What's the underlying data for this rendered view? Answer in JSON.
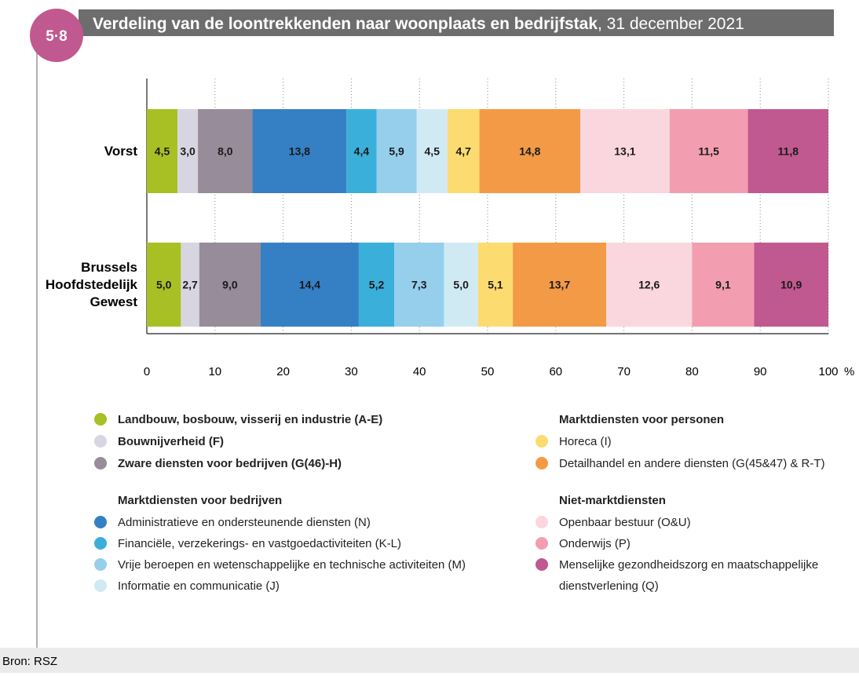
{
  "figure_number": "5·8",
  "source": "Bron: RSZ",
  "chart_data": {
    "type": "stacked_bar_horizontal",
    "title": "Verdeling van de loontrekkenden naar woonplaats en bedrijfstak",
    "subtitle": ", 31 december 2021",
    "categories": [
      "Vorst",
      "Brussels Hoofdstedelijk Gewest"
    ],
    "xlim": [
      0,
      100
    ],
    "xticks": [
      0,
      10,
      20,
      30,
      40,
      50,
      60,
      70,
      80,
      90,
      100
    ],
    "xlabel": "%",
    "grid": true,
    "legend_headings": [
      "Marktdiensten voor bedrijven",
      "Marktdiensten voor personen",
      "Niet-marktdiensten"
    ],
    "series": [
      {
        "name": "Landbouw, bosbouw, visserij en industrie (A-E)",
        "color": "#a8c023",
        "values": [
          4.5,
          5.0
        ],
        "value_labels": [
          "4,5",
          "5,0"
        ]
      },
      {
        "name": "Bouwnijverheid (F)",
        "color": "#d8d5e2",
        "values": [
          3.0,
          2.7
        ],
        "value_labels": [
          "3,0",
          "2,7"
        ]
      },
      {
        "name": "Zware diensten voor bedrijven (G(46)-H)",
        "color": "#978c99",
        "values": [
          8.0,
          9.0
        ],
        "value_labels": [
          "8,0",
          "9,0"
        ]
      },
      {
        "name": "Administratieve en ondersteunende diensten (N)",
        "color": "#3580c4",
        "values": [
          13.8,
          14.4
        ],
        "value_labels": [
          "13,8",
          "14,4"
        ]
      },
      {
        "name": "Financiële, verzekerings- en vastgoedactiviteiten (K-L)",
        "color": "#3aafd9",
        "values": [
          4.4,
          5.2
        ],
        "value_labels": [
          "4,4",
          "5,2"
        ]
      },
      {
        "name": "Vrije beroepen en wetenschappelijke en technische activiteiten (M)",
        "color": "#95cfec",
        "values": [
          5.9,
          7.3
        ],
        "value_labels": [
          "5,9",
          "7,3"
        ]
      },
      {
        "name": "Informatie en communicatie (J)",
        "color": "#d0eaf4",
        "values": [
          4.5,
          5.0
        ],
        "value_labels": [
          "4,5",
          "5,0"
        ]
      },
      {
        "name": "Horeca (I)",
        "color": "#fcdb70",
        "values": [
          4.7,
          5.1
        ],
        "value_labels": [
          "4,7",
          "5,1"
        ]
      },
      {
        "name": "Detailhandel en andere diensten (G(45&47) & R-T)",
        "color": "#f39a47",
        "values": [
          14.8,
          13.7
        ],
        "value_labels": [
          "14,8",
          "13,7"
        ]
      },
      {
        "name": "Openbaar bestuur (O&U)",
        "color": "#fad7df",
        "values": [
          13.1,
          12.6
        ],
        "value_labels": [
          "13,1",
          "12,6"
        ]
      },
      {
        "name": "Onderwijs (P)",
        "color": "#f29eb0",
        "values": [
          11.5,
          9.1
        ],
        "value_labels": [
          "11,5",
          "9,1"
        ]
      },
      {
        "name": "Menselijke gezondheidszorg en maatschappelijke dienstverlening (Q)",
        "color": "#c0598f",
        "values": [
          11.8,
          10.9
        ],
        "value_labels": [
          "11,8",
          "10,9"
        ]
      }
    ]
  }
}
